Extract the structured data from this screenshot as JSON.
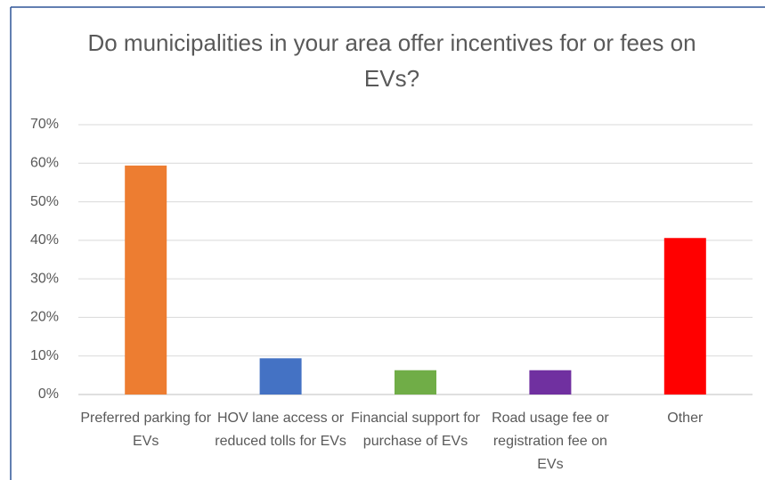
{
  "chart_data": {
    "type": "bar",
    "title": "Do municipalities in your area offer incentives for or fees on EVs?",
    "categories": [
      "Preferred parking for EVs",
      "HOV lane access or reduced tolls for EVs",
      "Financial support for purchase of EVs",
      "Road usage fee or registration fee on EVs",
      "Other"
    ],
    "values": [
      59.4,
      9.4,
      6.3,
      6.3,
      40.6
    ],
    "colors": [
      "#ED7D31",
      "#4472C4",
      "#70AD47",
      "#7030A0",
      "#FF0000"
    ],
    "ylim": [
      0,
      70
    ],
    "yticks": [
      {
        "value": 0,
        "label": "0%"
      },
      {
        "value": 10,
        "label": "10%"
      },
      {
        "value": 20,
        "label": "20%"
      },
      {
        "value": 30,
        "label": "30%"
      },
      {
        "value": 40,
        "label": "40%"
      },
      {
        "value": 50,
        "label": "50%"
      },
      {
        "value": 60,
        "label": "60%"
      },
      {
        "value": 70,
        "label": "70%"
      }
    ],
    "grid": true
  }
}
